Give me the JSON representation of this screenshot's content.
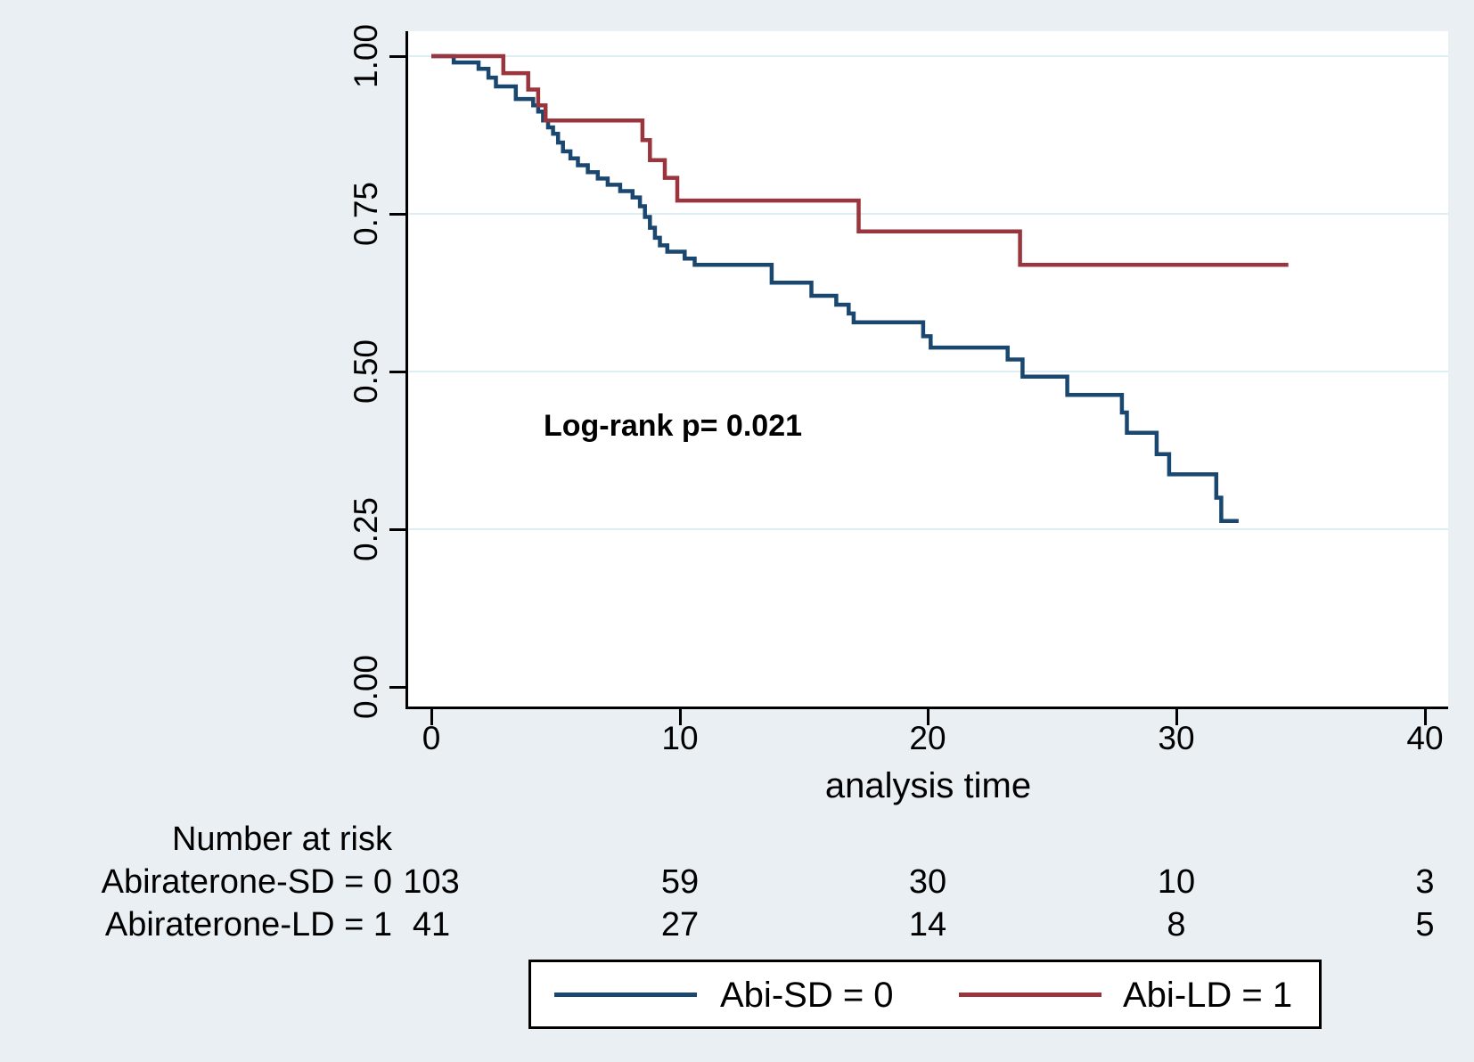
{
  "chart_data": {
    "type": "line",
    "subtype": "kaplan-meier-step",
    "title": "",
    "xlabel": "analysis time",
    "ylabel": "",
    "xlim": [
      0,
      40
    ],
    "ylim": [
      0.0,
      1.0
    ],
    "x_ticks": [
      "0",
      "10",
      "20",
      "30",
      "40"
    ],
    "y_ticks": [
      "1.00",
      "0.75",
      "0.50",
      "0.25",
      "0.00"
    ],
    "grid": "horizontal-at-y-ticks",
    "annotation": "Log-rank p= 0.021",
    "legend_position": "bottom",
    "series": [
      {
        "name": "Abi-SD = 0",
        "color": "#1a476f",
        "end_time": 32.5,
        "points": [
          [
            0,
            1.0
          ],
          [
            0.9,
            0.99
          ],
          [
            1.9,
            0.98
          ],
          [
            2.3,
            0.966
          ],
          [
            2.6,
            0.952
          ],
          [
            3.4,
            0.932
          ],
          [
            4.1,
            0.922
          ],
          [
            4.3,
            0.912
          ],
          [
            4.5,
            0.898
          ],
          [
            4.7,
            0.887
          ],
          [
            4.9,
            0.877
          ],
          [
            5.1,
            0.863
          ],
          [
            5.3,
            0.849
          ],
          [
            5.6,
            0.838
          ],
          [
            5.9,
            0.827
          ],
          [
            6.3,
            0.816
          ],
          [
            6.7,
            0.806
          ],
          [
            7.1,
            0.796
          ],
          [
            7.6,
            0.786
          ],
          [
            8.1,
            0.776
          ],
          [
            8.4,
            0.762
          ],
          [
            8.6,
            0.745
          ],
          [
            8.8,
            0.728
          ],
          [
            9.0,
            0.712
          ],
          [
            9.2,
            0.7
          ],
          [
            9.5,
            0.69
          ],
          [
            10.2,
            0.679
          ],
          [
            10.6,
            0.669
          ],
          [
            13.7,
            0.641
          ],
          [
            15.3,
            0.62
          ],
          [
            16.3,
            0.606
          ],
          [
            16.8,
            0.592
          ],
          [
            17.0,
            0.578
          ],
          [
            19.8,
            0.556
          ],
          [
            20.1,
            0.538
          ],
          [
            23.2,
            0.519
          ],
          [
            23.8,
            0.492
          ],
          [
            25.6,
            0.463
          ],
          [
            27.8,
            0.435
          ],
          [
            28.0,
            0.403
          ],
          [
            29.2,
            0.369
          ],
          [
            29.7,
            0.337
          ],
          [
            31.6,
            0.3
          ],
          [
            31.8,
            0.263
          ]
        ]
      },
      {
        "name": "Abi-LD = 1",
        "color": "#9a353d",
        "end_time": 34.5,
        "points": [
          [
            0,
            1.0
          ],
          [
            2.9,
            0.973
          ],
          [
            3.9,
            0.947
          ],
          [
            4.3,
            0.922
          ],
          [
            4.6,
            0.898
          ],
          [
            8.5,
            0.867
          ],
          [
            8.8,
            0.835
          ],
          [
            9.4,
            0.807
          ],
          [
            9.9,
            0.771
          ],
          [
            17.2,
            0.722
          ],
          [
            23.7,
            0.669
          ]
        ]
      }
    ]
  },
  "at_risk": {
    "heading": "Number at risk",
    "rows": [
      {
        "label": "Abiraterone-SD = 0",
        "counts": [
          "103",
          "59",
          "30",
          "10",
          "3"
        ]
      },
      {
        "label": "Abiraterone-LD = 1",
        "counts": [
          "41",
          "27",
          "14",
          "8",
          "5"
        ]
      }
    ]
  },
  "legend": {
    "items": [
      {
        "label": "Abi-SD = 0",
        "color": "#1a476f"
      },
      {
        "label": "Abi-LD = 1",
        "color": "#9a353d"
      }
    ]
  },
  "colors": {
    "background": "#e9eff2",
    "plot_background": "#ffffff",
    "gridline": "#dcedf3",
    "axis": "#000000",
    "series_sd": "#1a476f",
    "series_ld": "#9a353d"
  }
}
